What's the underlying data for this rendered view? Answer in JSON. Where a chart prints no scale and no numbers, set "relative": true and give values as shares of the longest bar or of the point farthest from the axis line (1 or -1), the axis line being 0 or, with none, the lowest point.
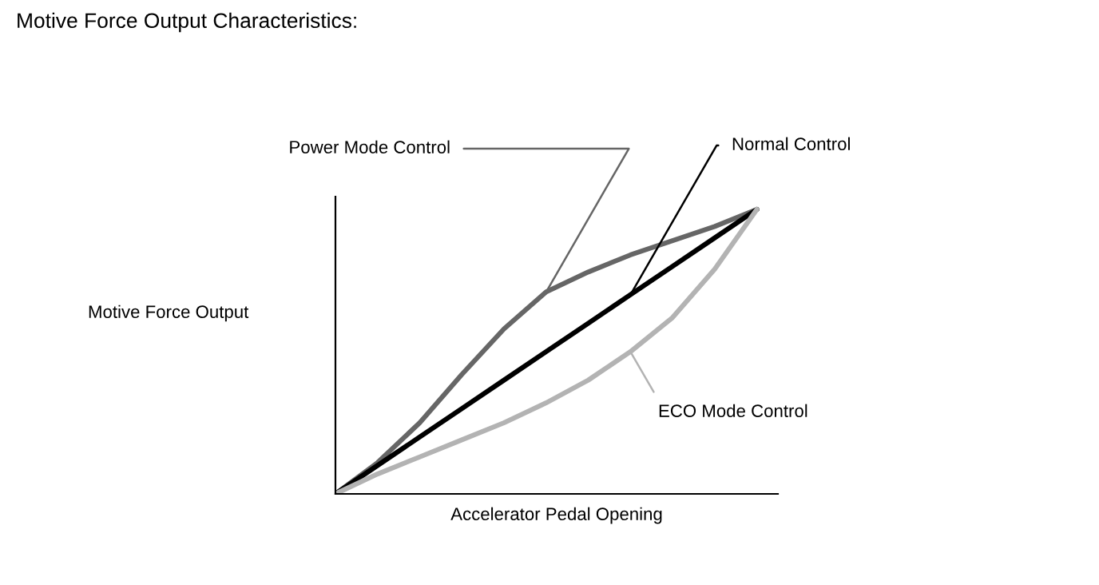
{
  "chart_data": {
    "type": "line",
    "title": "Motive Force Output Characteristics:",
    "xlabel": "Accelerator Pedal Opening",
    "ylabel": "Motive Force Output",
    "relative": true,
    "categories": [
      null,
      null,
      null,
      null,
      null,
      null,
      null,
      null,
      null,
      null,
      null
    ],
    "series": [
      {
        "name": "Power Mode Control",
        "color": "#666666",
        "values": [
          0,
          0.11,
          0.25,
          0.42,
          0.58,
          0.71,
          0.78,
          0.84,
          0.89,
          0.94,
          1
        ]
      },
      {
        "name": "Normal Control",
        "color": "#000000",
        "values": [
          0,
          0.1,
          0.2,
          0.3,
          0.4,
          0.5,
          0.6,
          0.7,
          0.8,
          0.9,
          1
        ]
      },
      {
        "name": "ECO Mode Control",
        "color": "#b3b3b3",
        "values": [
          0,
          0.07,
          0.13,
          0.19,
          0.25,
          0.32,
          0.4,
          0.5,
          0.62,
          0.79,
          1
        ]
      }
    ]
  }
}
